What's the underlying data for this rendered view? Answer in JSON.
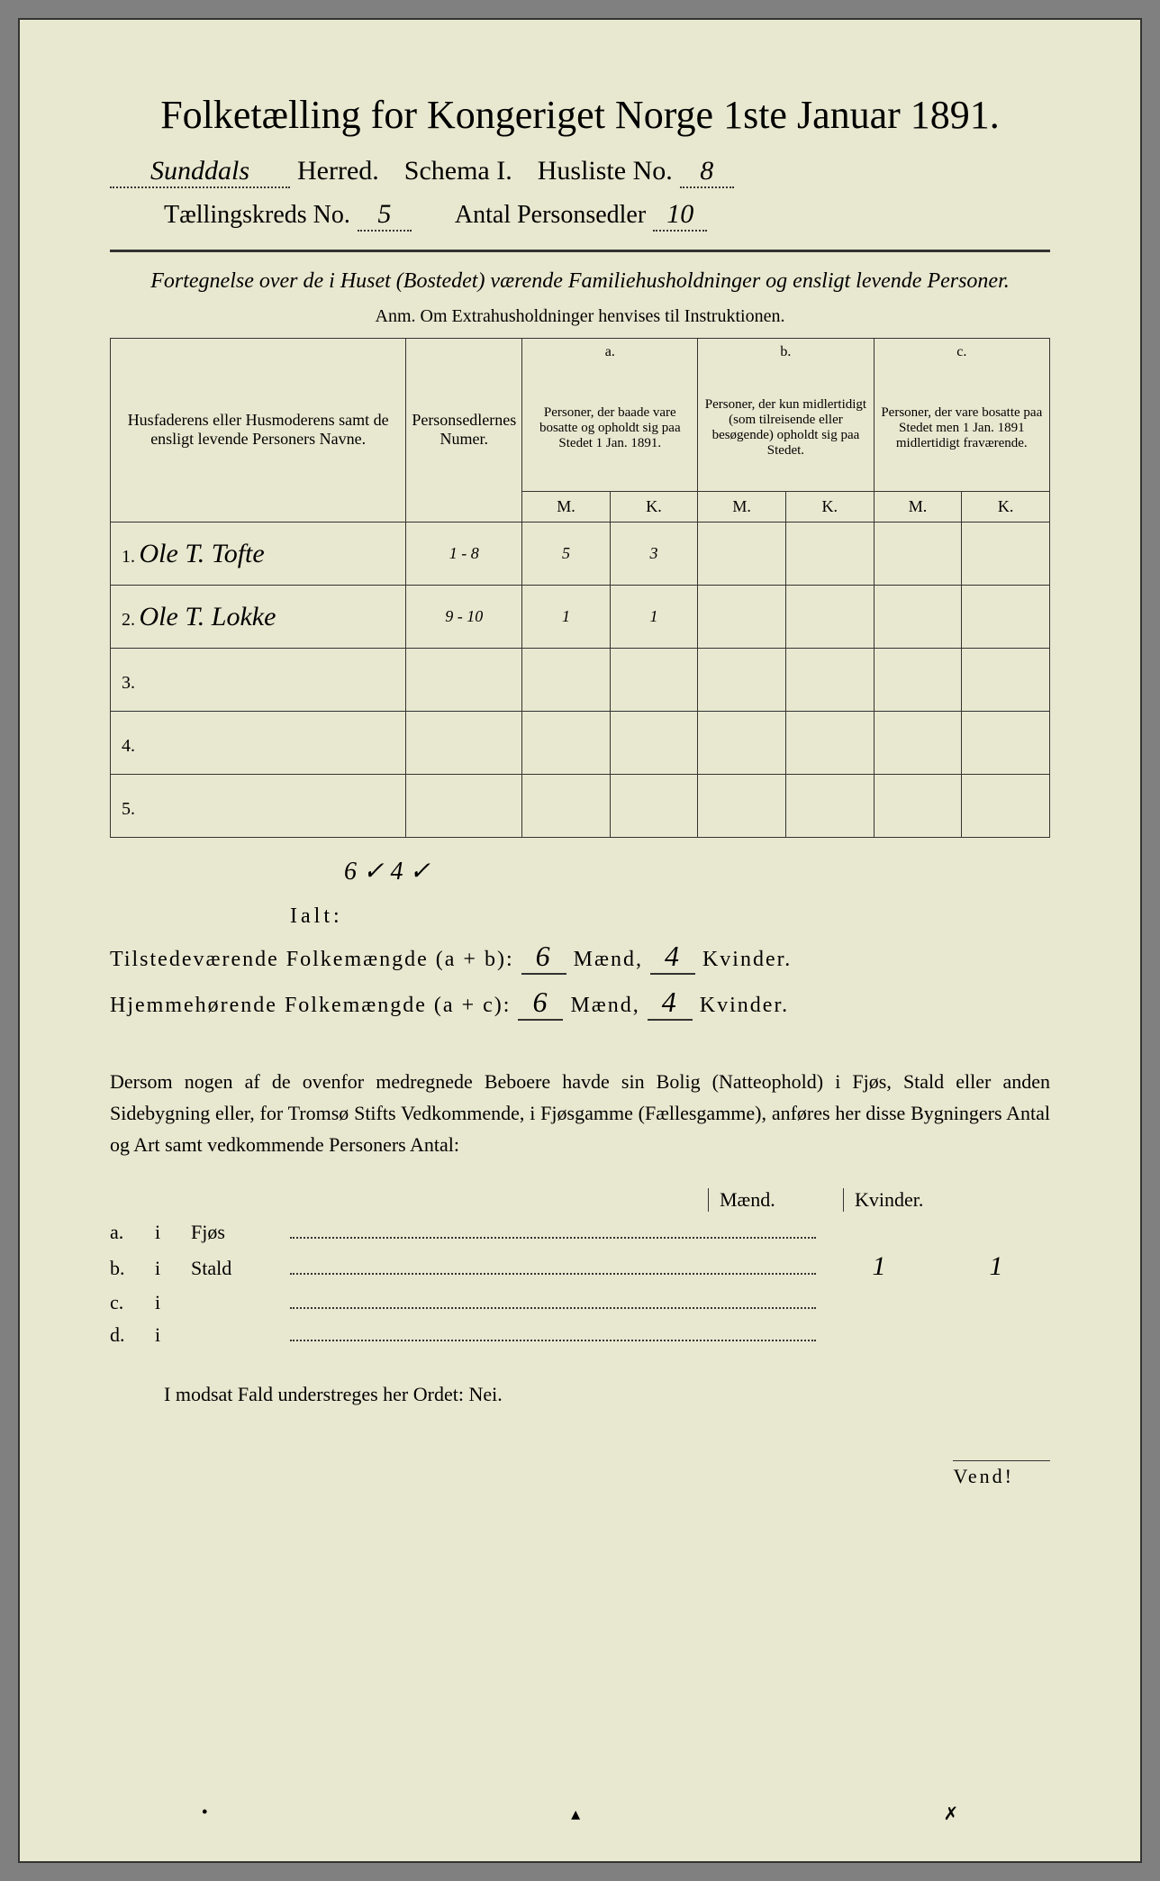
{
  "title": "Folketælling for Kongeriget Norge 1ste Januar 1891.",
  "header": {
    "herred_value": "Sunddals",
    "herred_label": "Herred.",
    "schema_label": "Schema I.",
    "husliste_label": "Husliste No.",
    "husliste_value": "8",
    "kreds_label": "Tællingskreds No.",
    "kreds_value": "5",
    "antal_label": "Antal Personsedler",
    "antal_value": "10"
  },
  "subtitle": "Fortegnelse over de i Huset (Bostedet) værende Familiehusholdninger og ensligt levende Personer.",
  "anm": "Anm. Om Extrahusholdninger henvises til Instruktionen.",
  "table": {
    "col1": "Husfaderens eller Husmoderens samt de ensligt levende Personers Navne.",
    "col2": "Personsedlernes Numer.",
    "col_a_top": "a.",
    "col_a": "Personer, der baade vare bosatte og opholdt sig paa Stedet 1 Jan. 1891.",
    "col_b_top": "b.",
    "col_b": "Personer, der kun midlertidigt (som tilreisende eller besøgende) opholdt sig paa Stedet.",
    "col_c_top": "c.",
    "col_c": "Personer, der vare bosatte paa Stedet men 1 Jan. 1891 midlertidigt fraværende.",
    "m": "M.",
    "k": "K.",
    "rows": [
      {
        "n": "1.",
        "name": "Ole T. Tofte",
        "num": "1 - 8",
        "am": "5",
        "ak": "3",
        "bm": "",
        "bk": "",
        "cm": "",
        "ck": ""
      },
      {
        "n": "2.",
        "name": "Ole T. Lokke",
        "num": "9 - 10",
        "am": "1",
        "ak": "1",
        "bm": "",
        "bk": "",
        "cm": "",
        "ck": ""
      },
      {
        "n": "3.",
        "name": "",
        "num": "",
        "am": "",
        "ak": "",
        "bm": "",
        "bk": "",
        "cm": "",
        "ck": ""
      },
      {
        "n": "4.",
        "name": "",
        "num": "",
        "am": "",
        "ak": "",
        "bm": "",
        "bk": "",
        "cm": "",
        "ck": ""
      },
      {
        "n": "5.",
        "name": "",
        "num": "",
        "am": "",
        "ak": "",
        "bm": "",
        "bk": "",
        "cm": "",
        "ck": ""
      }
    ]
  },
  "ialt_label": "Ialt:",
  "ialt_hand": "6 ✓   4 ✓",
  "summary": {
    "line1_label": "Tilstedeværende Folkemængde (a + b):",
    "line1_m": "6",
    "line1_k": "4",
    "line2_label": "Hjemmehørende Folkemængde (a + c):",
    "line2_m": "6",
    "line2_k": "4",
    "maend": "Mænd,",
    "kvinder": "Kvinder."
  },
  "paragraph": "Dersom nogen af de ovenfor medregnede Beboere havde sin Bolig (Natteophold) i Fjøs, Stald eller anden Sidebygning eller, for Tromsø Stifts Vedkommende, i Fjøsgamme (Fællesgamme), anføres her disse Bygningers Antal og Art samt vedkommende Personers Antal:",
  "buildings": {
    "hdr_m": "Mænd.",
    "hdr_k": "Kvinder.",
    "rows": [
      {
        "lbl": "a.",
        "i": "i",
        "name": "Fjøs",
        "m": "",
        "k": ""
      },
      {
        "lbl": "b.",
        "i": "i",
        "name": "Stald",
        "m": "1",
        "k": "1"
      },
      {
        "lbl": "c.",
        "i": "i",
        "name": "",
        "m": "",
        "k": ""
      },
      {
        "lbl": "d.",
        "i": "i",
        "name": "",
        "m": "",
        "k": ""
      }
    ]
  },
  "footer": "I modsat Fald understreges her Ordet: Nei.",
  "vend": "Vend!",
  "colors": {
    "paper": "#e8e8d0",
    "ink": "#2a2a2a",
    "border": "#333333"
  }
}
